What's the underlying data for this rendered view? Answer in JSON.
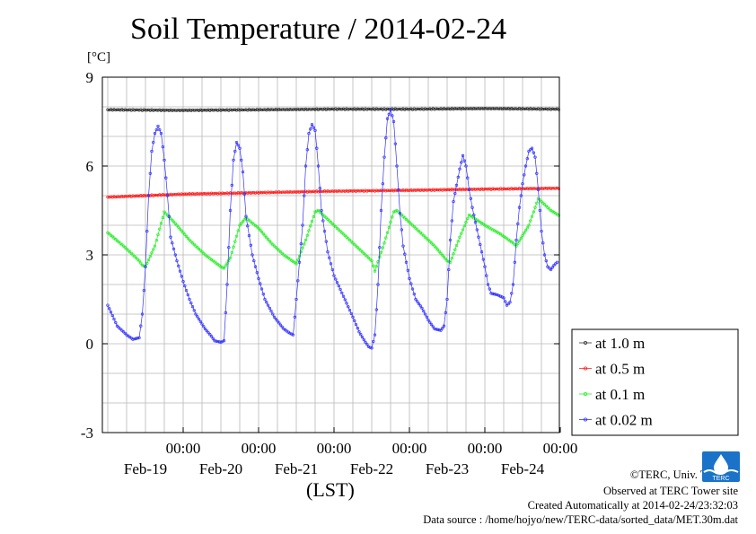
{
  "title": "Soil Temperature / 2014-02-24",
  "unit_label": "[°C]",
  "x_axis_label": "(LST)",
  "credits": {
    "copyright": "©TERC, Univ. Tsukuba",
    "observed": "Observed at TERC Tower site",
    "created": "Created Automatically at 2014-02-24/23:32:03",
    "source": "Data source : /home/hojyo/new/TERC-data/sorted_data/MET.30m.dat"
  },
  "logo": {
    "icon": "terc-logo-icon",
    "text": "TERC",
    "color": "#1a73c9"
  },
  "chart_data": {
    "type": "line",
    "title": "Soil Temperature / 2014-02-24",
    "ylabel": "[°C]",
    "xlabel": "(LST)",
    "ylim": [
      -3,
      9
    ],
    "y_ticks": [
      "-3",
      "0",
      "3",
      "6",
      "9"
    ],
    "xlim_hours": [
      0,
      144
    ],
    "x_tick_labels": [
      {
        "time": "00:00",
        "date": "Feb-19"
      },
      {
        "time": "00:00",
        "date": "Feb-20"
      },
      {
        "time": "00:00",
        "date": "Feb-21"
      },
      {
        "time": "00:00",
        "date": "Feb-22"
      },
      {
        "time": "00:00",
        "date": "Feb-23"
      },
      {
        "time": "00:00",
        "date": "Feb-24"
      }
    ],
    "grid": true,
    "legend_position": "right",
    "series": [
      {
        "name": "at 1.0 m",
        "color": "#333333",
        "points": [
          [
            0,
            7.9
          ],
          [
            24,
            7.88
          ],
          [
            48,
            7.9
          ],
          [
            72,
            7.92
          ],
          [
            96,
            7.92
          ],
          [
            120,
            7.94
          ],
          [
            144,
            7.92
          ]
        ]
      },
      {
        "name": "at 0.5 m",
        "color": "#ff2020",
        "points": [
          [
            0,
            4.95
          ],
          [
            24,
            5.05
          ],
          [
            48,
            5.1
          ],
          [
            72,
            5.15
          ],
          [
            96,
            5.18
          ],
          [
            120,
            5.22
          ],
          [
            144,
            5.25
          ]
        ]
      },
      {
        "name": "at 0.1 m",
        "color": "#22ee22",
        "points": [
          [
            0,
            3.75
          ],
          [
            5,
            3.3
          ],
          [
            10,
            2.8
          ],
          [
            11,
            2.65
          ],
          [
            12,
            2.6
          ],
          [
            15,
            3.3
          ],
          [
            18,
            4.45
          ],
          [
            22,
            4.0
          ],
          [
            26,
            3.5
          ],
          [
            31,
            3.0
          ],
          [
            36,
            2.6
          ],
          [
            37,
            2.55
          ],
          [
            39,
            2.9
          ],
          [
            42,
            4.0
          ],
          [
            44,
            4.25
          ],
          [
            48,
            3.9
          ],
          [
            52,
            3.4
          ],
          [
            56,
            3.0
          ],
          [
            60,
            2.7
          ],
          [
            63,
            3.5
          ],
          [
            66,
            4.45
          ],
          [
            67,
            4.5
          ],
          [
            70,
            4.2
          ],
          [
            75,
            3.7
          ],
          [
            80,
            3.2
          ],
          [
            84,
            2.8
          ],
          [
            85,
            2.45
          ],
          [
            88,
            3.4
          ],
          [
            91,
            4.45
          ],
          [
            92,
            4.5
          ],
          [
            96,
            4.1
          ],
          [
            100,
            3.7
          ],
          [
            104,
            3.3
          ],
          [
            108,
            2.8
          ],
          [
            109,
            2.75
          ],
          [
            112,
            3.6
          ],
          [
            115,
            4.35
          ],
          [
            120,
            4.0
          ],
          [
            125,
            3.7
          ],
          [
            129,
            3.4
          ],
          [
            130,
            3.3
          ],
          [
            134,
            4.0
          ],
          [
            137,
            4.9
          ],
          [
            141,
            4.5
          ],
          [
            144,
            4.3
          ]
        ]
      },
      {
        "name": "at 0.02 m",
        "color": "#3030ff",
        "points": [
          [
            0,
            1.3
          ],
          [
            3,
            0.6
          ],
          [
            6,
            0.3
          ],
          [
            8,
            0.15
          ],
          [
            10,
            0.2
          ],
          [
            11,
            1.0
          ],
          [
            12,
            2.6
          ],
          [
            13,
            5.0
          ],
          [
            14,
            6.5
          ],
          [
            15,
            7.1
          ],
          [
            16,
            7.35
          ],
          [
            17,
            7.1
          ],
          [
            18,
            6.2
          ],
          [
            19,
            5.0
          ],
          [
            20,
            3.6
          ],
          [
            22,
            2.8
          ],
          [
            24,
            2.1
          ],
          [
            26,
            1.5
          ],
          [
            28,
            1.0
          ],
          [
            31,
            0.5
          ],
          [
            33,
            0.25
          ],
          [
            34,
            0.1
          ],
          [
            36,
            0.05
          ],
          [
            37,
            0.1
          ],
          [
            38,
            2.0
          ],
          [
            39,
            4.5
          ],
          [
            40,
            6.2
          ],
          [
            41,
            6.8
          ],
          [
            42,
            6.6
          ],
          [
            43,
            5.8
          ],
          [
            44,
            4.3
          ],
          [
            46,
            3.0
          ],
          [
            48,
            2.2
          ],
          [
            50,
            1.5
          ],
          [
            53,
            0.9
          ],
          [
            56,
            0.5
          ],
          [
            58,
            0.35
          ],
          [
            59,
            0.3
          ],
          [
            60,
            1.5
          ],
          [
            62,
            4.0
          ],
          [
            63,
            6.0
          ],
          [
            64,
            7.1
          ],
          [
            65,
            7.4
          ],
          [
            66,
            7.2
          ],
          [
            67,
            6.0
          ],
          [
            68,
            4.5
          ],
          [
            70,
            3.1
          ],
          [
            72,
            2.3
          ],
          [
            75,
            1.6
          ],
          [
            78,
            0.9
          ],
          [
            80,
            0.4
          ],
          [
            82,
            0.05
          ],
          [
            83,
            -0.1
          ],
          [
            84,
            -0.15
          ],
          [
            85,
            0.3
          ],
          [
            86,
            2.0
          ],
          [
            87,
            4.5
          ],
          [
            88,
            6.3
          ],
          [
            89,
            7.6
          ],
          [
            90,
            7.9
          ],
          [
            91,
            7.5
          ],
          [
            92,
            6.0
          ],
          [
            93,
            4.4
          ],
          [
            94,
            3.3
          ],
          [
            96,
            2.2
          ],
          [
            98,
            1.5
          ],
          [
            100,
            1.2
          ],
          [
            102,
            0.8
          ],
          [
            104,
            0.5
          ],
          [
            106,
            0.45
          ],
          [
            107,
            0.6
          ],
          [
            108,
            1.5
          ],
          [
            109,
            3.5
          ],
          [
            110,
            4.8
          ],
          [
            112,
            5.9
          ],
          [
            113,
            6.35
          ],
          [
            114,
            6.0
          ],
          [
            115,
            5.2
          ],
          [
            116,
            4.6
          ],
          [
            118,
            3.6
          ],
          [
            120,
            2.6
          ],
          [
            121,
            2.0
          ],
          [
            122,
            1.7
          ],
          [
            124,
            1.65
          ],
          [
            126,
            1.55
          ],
          [
            127,
            1.3
          ],
          [
            128,
            1.4
          ],
          [
            129,
            2.0
          ],
          [
            130,
            3.5
          ],
          [
            131,
            4.6
          ],
          [
            132,
            5.4
          ],
          [
            133,
            6.0
          ],
          [
            134,
            6.5
          ],
          [
            135,
            6.6
          ],
          [
            136,
            6.3
          ],
          [
            137,
            5.2
          ],
          [
            138,
            3.8
          ],
          [
            139,
            3.0
          ],
          [
            140,
            2.6
          ],
          [
            141,
            2.5
          ],
          [
            142,
            2.65
          ],
          [
            143,
            2.75
          ]
        ]
      }
    ]
  }
}
